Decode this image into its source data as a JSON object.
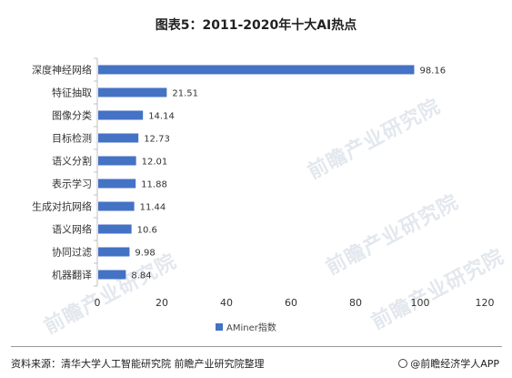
{
  "header": {
    "title": "图表5：2011-2020年十大AI热点"
  },
  "watermarks": [
    "前瞻产业研究院",
    "前瞻产业研究院",
    "前瞻产业研究院",
    "前瞻产业研究院"
  ],
  "footer": {
    "source": "资料来源：清华大学人工智能研究院 前瞻产业研究院整理",
    "brand": "@前瞻经济学人APP"
  },
  "colors": {
    "bar": "#4472c4",
    "axis": "#bfbfbf",
    "text": "#333333"
  },
  "chart_data": {
    "type": "bar",
    "orientation": "horizontal",
    "title": "图表5：2011-2020年十大AI热点",
    "categories": [
      "深度神经网络",
      "特征抽取",
      "图像分类",
      "目标检测",
      "语义分割",
      "表示学习",
      "生成对抗网络",
      "语义网络",
      "协同过滤",
      "机器翻译"
    ],
    "series": [
      {
        "name": "AMiner指数",
        "values": [
          98.16,
          21.51,
          14.14,
          12.73,
          12.01,
          11.88,
          11.44,
          10.6,
          9.98,
          8.84
        ]
      }
    ],
    "data_labels": [
      "98.16",
      "21.51",
      "14.14",
      "12.73",
      "12.01",
      "11.88",
      "11.44",
      "10.6",
      "9.98",
      "8.84"
    ],
    "xlim": [
      0,
      120
    ],
    "xticks": [
      "0",
      "20",
      "40",
      "60",
      "80",
      "100",
      "120"
    ],
    "grid": false,
    "legend_position": "bottom"
  }
}
